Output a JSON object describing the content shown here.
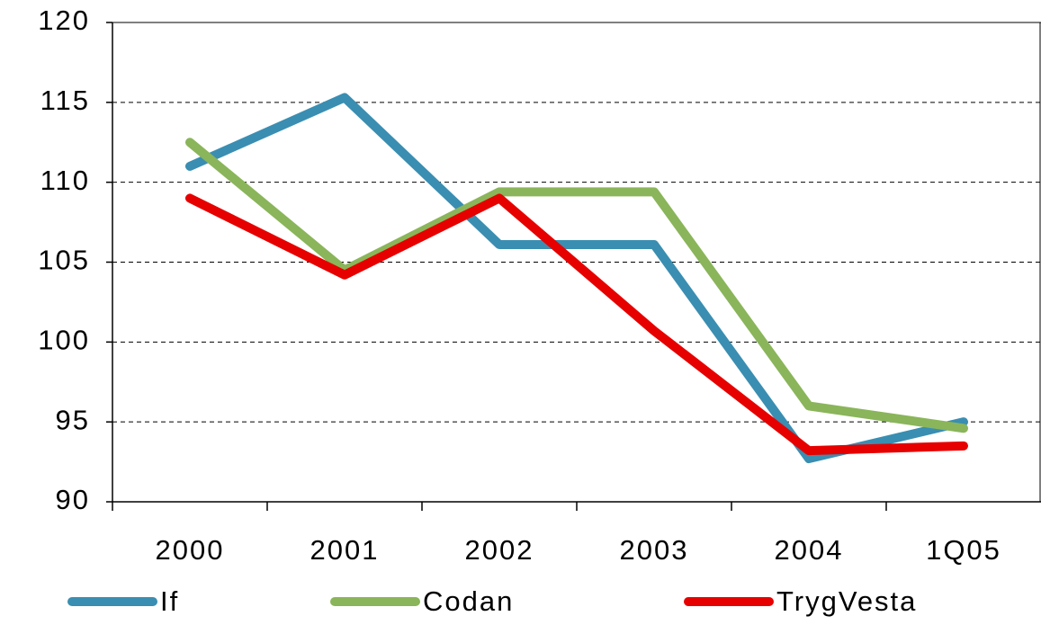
{
  "chart_data": {
    "type": "line",
    "categories": [
      "2000",
      "2001",
      "2002",
      "2003",
      "2004",
      "1Q05"
    ],
    "series": [
      {
        "name": "If",
        "color": "#3a8eb1",
        "values": [
          111.0,
          115.3,
          106.1,
          106.1,
          92.7,
          95.0
        ]
      },
      {
        "name": "Codan",
        "color": "#8ab55a",
        "values": [
          112.5,
          104.5,
          109.4,
          109.4,
          96.0,
          94.6
        ]
      },
      {
        "name": "TrygVesta",
        "color": "#e60000",
        "values": [
          109.0,
          104.2,
          109.0,
          100.7,
          93.2,
          93.5
        ]
      }
    ],
    "ylim": [
      90,
      120
    ],
    "yticks": [
      90,
      95,
      100,
      105,
      110,
      115,
      120
    ],
    "grid": true,
    "legend": "bottom"
  }
}
